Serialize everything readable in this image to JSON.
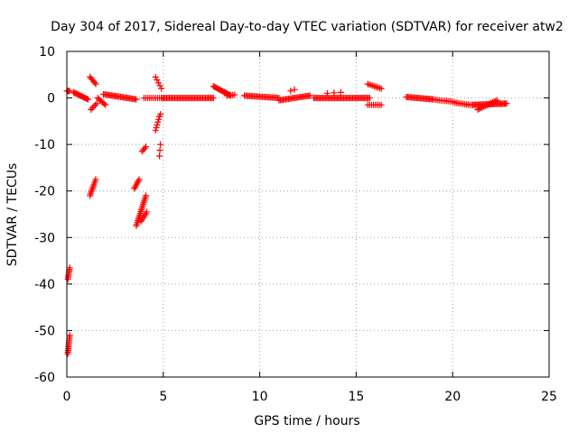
{
  "chart_data": {
    "type": "scatter",
    "title": "Day 304 of 2017, Sidereal Day-to-day VTEC variation (SDTVAR) for receiver atw2",
    "xlabel": "GPS time / hours",
    "ylabel": "SDTVAR / TECUs",
    "xlim": [
      0,
      25
    ],
    "ylim": [
      -60,
      10
    ],
    "xticks": [
      0,
      5,
      10,
      15,
      20,
      25
    ],
    "yticks": [
      -60,
      -50,
      -40,
      -30,
      -20,
      -10,
      0,
      10
    ],
    "grid": true,
    "marker": "+",
    "marker_color": "#ff0000",
    "series": [
      {
        "name": "SDTVAR",
        "segments": [
          {
            "x0": 0.0,
            "y0": 1.5,
            "x1": 0.15,
            "y1": 1.5,
            "n": 4
          },
          {
            "x0": 0.05,
            "y0": -55,
            "x1": 0.15,
            "y1": -51,
            "n": 12
          },
          {
            "x0": 0.05,
            "y0": -39,
            "x1": 0.15,
            "y1": -36.5,
            "n": 8
          },
          {
            "x0": 0.35,
            "y0": 1.2,
            "x1": 1.1,
            "y1": -0.3,
            "n": 14
          },
          {
            "x0": 1.2,
            "y0": 4.5,
            "x1": 1.5,
            "y1": 3.0,
            "n": 6
          },
          {
            "x0": 1.25,
            "y0": -2.5,
            "x1": 1.55,
            "y1": -1.2,
            "n": 5
          },
          {
            "x0": 1.2,
            "y0": -21,
            "x1": 1.5,
            "y1": -17.5,
            "n": 10
          },
          {
            "x0": 1.6,
            "y0": 0.0,
            "x1": 2.0,
            "y1": -1.5,
            "n": 7
          },
          {
            "x0": 1.9,
            "y0": 0.8,
            "x1": 3.6,
            "y1": -0.3,
            "n": 26
          },
          {
            "x0": 3.5,
            "y0": -19.5,
            "x1": 3.75,
            "y1": -17.5,
            "n": 7
          },
          {
            "x0": 3.6,
            "y0": -27.5,
            "x1": 4.1,
            "y1": -21,
            "n": 18
          },
          {
            "x0": 3.85,
            "y0": -26.5,
            "x1": 4.15,
            "y1": -24.5,
            "n": 6
          },
          {
            "x0": 3.9,
            "y0": -11.5,
            "x1": 4.1,
            "y1": -10.5,
            "n": 4
          },
          {
            "x0": 4.0,
            "y0": 0.0,
            "x1": 4.3,
            "y1": 0.0,
            "n": 4
          },
          {
            "x0": 4.4,
            "y0": 0.0,
            "x1": 4.8,
            "y1": 0.0,
            "n": 5
          },
          {
            "x0": 4.6,
            "y0": 4.5,
            "x1": 4.9,
            "y1": 2.0,
            "n": 5
          },
          {
            "x0": 4.6,
            "y0": -7,
            "x1": 4.8,
            "y1": -4,
            "n": 6
          },
          {
            "x0": 4.8,
            "y0": -12.5,
            "x1": 4.85,
            "y1": -10,
            "n": 3
          },
          {
            "x0": 4.8,
            "y0": -4.0,
            "x1": 4.85,
            "y1": -3.5,
            "n": 2
          },
          {
            "x0": 4.9,
            "y0": 0.0,
            "x1": 7.6,
            "y1": 0.0,
            "n": 40
          },
          {
            "x0": 7.6,
            "y0": 2.5,
            "x1": 8.5,
            "y1": 0.5,
            "n": 16
          },
          {
            "x0": 8.3,
            "y0": 0.5,
            "x1": 8.7,
            "y1": 0.7,
            "n": 5
          },
          {
            "x0": 9.2,
            "y0": 0.5,
            "x1": 11.0,
            "y1": 0.0,
            "n": 26
          },
          {
            "x0": 11.0,
            "y0": -0.5,
            "x1": 12.6,
            "y1": 0.5,
            "n": 24
          },
          {
            "x0": 11.6,
            "y0": 1.5,
            "x1": 11.8,
            "y1": 1.8,
            "n": 2
          },
          {
            "x0": 12.8,
            "y0": 0.0,
            "x1": 15.7,
            "y1": 0.0,
            "n": 44
          },
          {
            "x0": 13.5,
            "y0": 1.0,
            "x1": 14.2,
            "y1": 1.2,
            "n": 3
          },
          {
            "x0": 15.6,
            "y0": 3.0,
            "x1": 16.3,
            "y1": 2.0,
            "n": 9
          },
          {
            "x0": 15.6,
            "y0": -1.5,
            "x1": 16.3,
            "y1": -1.5,
            "n": 8
          },
          {
            "x0": 17.6,
            "y0": 0.2,
            "x1": 19.0,
            "y1": -0.3,
            "n": 22
          },
          {
            "x0": 19.1,
            "y0": -0.4,
            "x1": 20.0,
            "y1": -0.8,
            "n": 10
          },
          {
            "x0": 20.1,
            "y0": -1.0,
            "x1": 20.9,
            "y1": -1.5,
            "n": 10
          },
          {
            "x0": 21.0,
            "y0": -1.5,
            "x1": 22.8,
            "y1": -1.2,
            "n": 30
          },
          {
            "x0": 21.3,
            "y0": -2.5,
            "x1": 22.3,
            "y1": -0.5,
            "n": 14
          }
        ]
      }
    ]
  }
}
